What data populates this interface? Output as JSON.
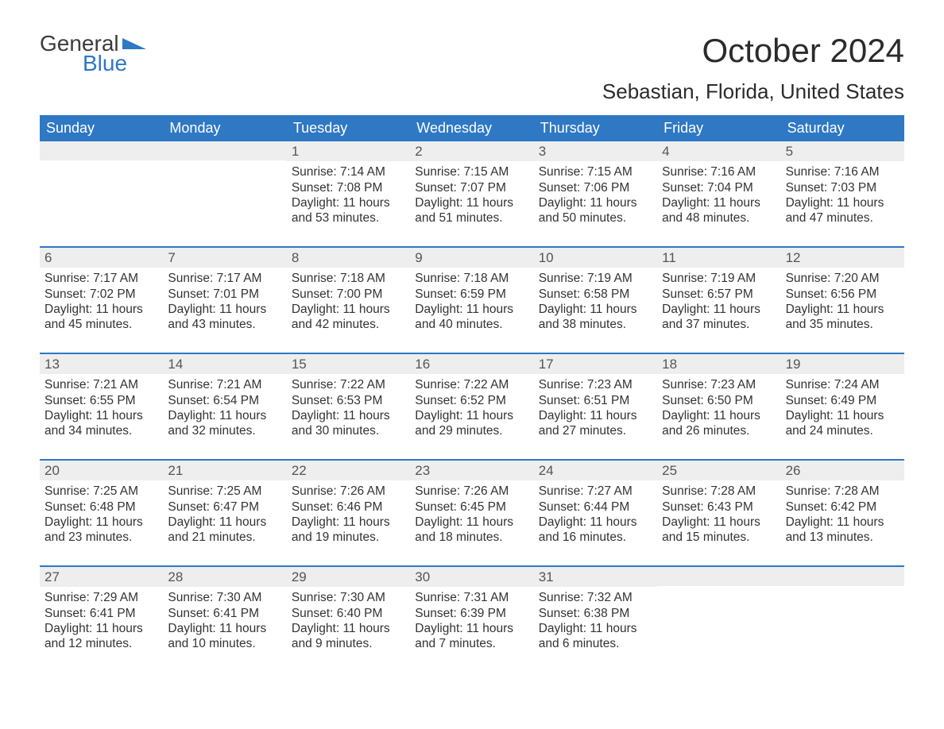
{
  "logo": {
    "line1": "General",
    "line2": "Blue",
    "brand_color": "#2f78c4"
  },
  "title": "October 2024",
  "location": "Sebastian, Florida, United States",
  "colors": {
    "header_bg": "#2f78c4",
    "header_text": "#ffffff",
    "daynum_bg": "#eeeeee",
    "week_border": "#2f78c4",
    "body_text": "#333333",
    "title_text": "#2b2b2b"
  },
  "days_of_week": [
    "Sunday",
    "Monday",
    "Tuesday",
    "Wednesday",
    "Thursday",
    "Friday",
    "Saturday"
  ],
  "weeks": [
    [
      {
        "n": "",
        "sunrise": "",
        "sunset": "",
        "daylight": ""
      },
      {
        "n": "",
        "sunrise": "",
        "sunset": "",
        "daylight": ""
      },
      {
        "n": "1",
        "sunrise": "Sunrise: 7:14 AM",
        "sunset": "Sunset: 7:08 PM",
        "daylight": "Daylight: 11 hours and 53 minutes."
      },
      {
        "n": "2",
        "sunrise": "Sunrise: 7:15 AM",
        "sunset": "Sunset: 7:07 PM",
        "daylight": "Daylight: 11 hours and 51 minutes."
      },
      {
        "n": "3",
        "sunrise": "Sunrise: 7:15 AM",
        "sunset": "Sunset: 7:06 PM",
        "daylight": "Daylight: 11 hours and 50 minutes."
      },
      {
        "n": "4",
        "sunrise": "Sunrise: 7:16 AM",
        "sunset": "Sunset: 7:04 PM",
        "daylight": "Daylight: 11 hours and 48 minutes."
      },
      {
        "n": "5",
        "sunrise": "Sunrise: 7:16 AM",
        "sunset": "Sunset: 7:03 PM",
        "daylight": "Daylight: 11 hours and 47 minutes."
      }
    ],
    [
      {
        "n": "6",
        "sunrise": "Sunrise: 7:17 AM",
        "sunset": "Sunset: 7:02 PM",
        "daylight": "Daylight: 11 hours and 45 minutes."
      },
      {
        "n": "7",
        "sunrise": "Sunrise: 7:17 AM",
        "sunset": "Sunset: 7:01 PM",
        "daylight": "Daylight: 11 hours and 43 minutes."
      },
      {
        "n": "8",
        "sunrise": "Sunrise: 7:18 AM",
        "sunset": "Sunset: 7:00 PM",
        "daylight": "Daylight: 11 hours and 42 minutes."
      },
      {
        "n": "9",
        "sunrise": "Sunrise: 7:18 AM",
        "sunset": "Sunset: 6:59 PM",
        "daylight": "Daylight: 11 hours and 40 minutes."
      },
      {
        "n": "10",
        "sunrise": "Sunrise: 7:19 AM",
        "sunset": "Sunset: 6:58 PM",
        "daylight": "Daylight: 11 hours and 38 minutes."
      },
      {
        "n": "11",
        "sunrise": "Sunrise: 7:19 AM",
        "sunset": "Sunset: 6:57 PM",
        "daylight": "Daylight: 11 hours and 37 minutes."
      },
      {
        "n": "12",
        "sunrise": "Sunrise: 7:20 AM",
        "sunset": "Sunset: 6:56 PM",
        "daylight": "Daylight: 11 hours and 35 minutes."
      }
    ],
    [
      {
        "n": "13",
        "sunrise": "Sunrise: 7:21 AM",
        "sunset": "Sunset: 6:55 PM",
        "daylight": "Daylight: 11 hours and 34 minutes."
      },
      {
        "n": "14",
        "sunrise": "Sunrise: 7:21 AM",
        "sunset": "Sunset: 6:54 PM",
        "daylight": "Daylight: 11 hours and 32 minutes."
      },
      {
        "n": "15",
        "sunrise": "Sunrise: 7:22 AM",
        "sunset": "Sunset: 6:53 PM",
        "daylight": "Daylight: 11 hours and 30 minutes."
      },
      {
        "n": "16",
        "sunrise": "Sunrise: 7:22 AM",
        "sunset": "Sunset: 6:52 PM",
        "daylight": "Daylight: 11 hours and 29 minutes."
      },
      {
        "n": "17",
        "sunrise": "Sunrise: 7:23 AM",
        "sunset": "Sunset: 6:51 PM",
        "daylight": "Daylight: 11 hours and 27 minutes."
      },
      {
        "n": "18",
        "sunrise": "Sunrise: 7:23 AM",
        "sunset": "Sunset: 6:50 PM",
        "daylight": "Daylight: 11 hours and 26 minutes."
      },
      {
        "n": "19",
        "sunrise": "Sunrise: 7:24 AM",
        "sunset": "Sunset: 6:49 PM",
        "daylight": "Daylight: 11 hours and 24 minutes."
      }
    ],
    [
      {
        "n": "20",
        "sunrise": "Sunrise: 7:25 AM",
        "sunset": "Sunset: 6:48 PM",
        "daylight": "Daylight: 11 hours and 23 minutes."
      },
      {
        "n": "21",
        "sunrise": "Sunrise: 7:25 AM",
        "sunset": "Sunset: 6:47 PM",
        "daylight": "Daylight: 11 hours and 21 minutes."
      },
      {
        "n": "22",
        "sunrise": "Sunrise: 7:26 AM",
        "sunset": "Sunset: 6:46 PM",
        "daylight": "Daylight: 11 hours and 19 minutes."
      },
      {
        "n": "23",
        "sunrise": "Sunrise: 7:26 AM",
        "sunset": "Sunset: 6:45 PM",
        "daylight": "Daylight: 11 hours and 18 minutes."
      },
      {
        "n": "24",
        "sunrise": "Sunrise: 7:27 AM",
        "sunset": "Sunset: 6:44 PM",
        "daylight": "Daylight: 11 hours and 16 minutes."
      },
      {
        "n": "25",
        "sunrise": "Sunrise: 7:28 AM",
        "sunset": "Sunset: 6:43 PM",
        "daylight": "Daylight: 11 hours and 15 minutes."
      },
      {
        "n": "26",
        "sunrise": "Sunrise: 7:28 AM",
        "sunset": "Sunset: 6:42 PM",
        "daylight": "Daylight: 11 hours and 13 minutes."
      }
    ],
    [
      {
        "n": "27",
        "sunrise": "Sunrise: 7:29 AM",
        "sunset": "Sunset: 6:41 PM",
        "daylight": "Daylight: 11 hours and 12 minutes."
      },
      {
        "n": "28",
        "sunrise": "Sunrise: 7:30 AM",
        "sunset": "Sunset: 6:41 PM",
        "daylight": "Daylight: 11 hours and 10 minutes."
      },
      {
        "n": "29",
        "sunrise": "Sunrise: 7:30 AM",
        "sunset": "Sunset: 6:40 PM",
        "daylight": "Daylight: 11 hours and 9 minutes."
      },
      {
        "n": "30",
        "sunrise": "Sunrise: 7:31 AM",
        "sunset": "Sunset: 6:39 PM",
        "daylight": "Daylight: 11 hours and 7 minutes."
      },
      {
        "n": "31",
        "sunrise": "Sunrise: 7:32 AM",
        "sunset": "Sunset: 6:38 PM",
        "daylight": "Daylight: 11 hours and 6 minutes."
      },
      {
        "n": "",
        "sunrise": "",
        "sunset": "",
        "daylight": ""
      },
      {
        "n": "",
        "sunrise": "",
        "sunset": "",
        "daylight": ""
      }
    ]
  ]
}
